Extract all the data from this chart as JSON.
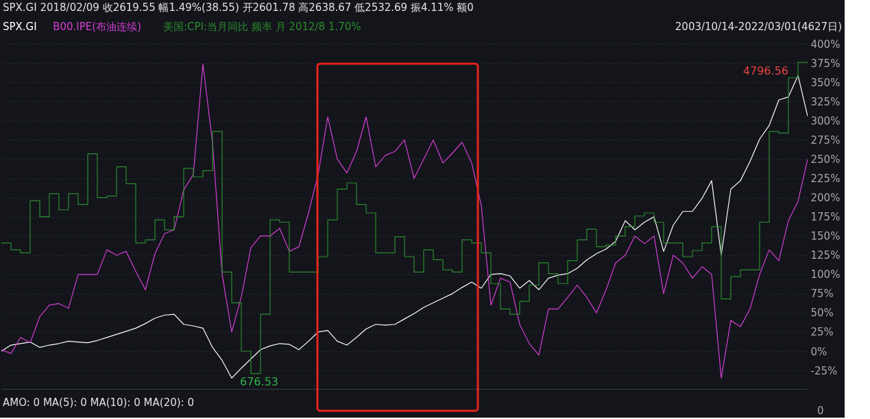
{
  "chart_data": {
    "type": "line",
    "title": "SPX.GI  2018/02/09  收2619.55  幅1.49%(38.55)  开2601.78  高2638.67  低2532.69  振4.11%  额0",
    "subtitle": "2003/10/14-2022/03/01(4627日)",
    "categories": [
      null,
      null,
      null,
      null,
      null,
      null,
      null,
      null,
      null,
      null,
      null,
      null,
      null,
      null,
      null,
      null,
      null,
      null,
      null,
      null,
      null,
      null,
      null,
      null,
      null,
      null,
      null,
      null,
      null,
      null,
      null,
      null,
      null,
      null,
      null,
      null,
      null,
      null,
      null,
      null,
      null,
      null,
      null,
      null,
      null,
      null,
      null,
      null,
      null,
      null,
      null,
      null,
      null,
      null,
      null,
      null,
      null,
      null,
      null,
      null,
      null,
      null,
      null,
      null,
      null,
      null,
      null,
      null,
      null,
      null,
      null,
      null,
      null,
      null,
      null,
      null,
      null,
      null,
      null,
      null,
      null,
      null,
      null,
      null,
      null
    ],
    "ylim": [
      -49,
      401
    ],
    "yticks": [
      {
        "value": -25,
        "label": "-25%"
      },
      {
        "value": 0,
        "label": "0%"
      },
      {
        "value": 25,
        "label": "25%"
      },
      {
        "value": 50,
        "label": "50%"
      },
      {
        "value": 75,
        "label": "75%"
      },
      {
        "value": 100,
        "label": "100%"
      },
      {
        "value": 125,
        "label": "125%"
      },
      {
        "value": 150,
        "label": "150%"
      },
      {
        "value": 175,
        "label": "175%"
      },
      {
        "value": 200,
        "label": "200%"
      },
      {
        "value": 225,
        "label": "225%"
      },
      {
        "value": 250,
        "label": "250%"
      },
      {
        "value": 275,
        "label": "275%"
      },
      {
        "value": 300,
        "label": "300%"
      },
      {
        "value": 325,
        "label": "325%"
      },
      {
        "value": 350,
        "label": "350%"
      },
      {
        "value": 375,
        "label": "375%"
      },
      {
        "value": 400,
        "label": "400%"
      }
    ],
    "tick_labels": "y",
    "grid": "y",
    "series": [
      {
        "name": "SPX.GI",
        "color": "#ffffff",
        "type": "line",
        "values": [
          0,
          8,
          10,
          12,
          5,
          8,
          10,
          13,
          12,
          11,
          14,
          18,
          22,
          26,
          30,
          36,
          43,
          47,
          48,
          35,
          33,
          30,
          5,
          -12,
          -35,
          -22,
          -10,
          2,
          7,
          10,
          9,
          2,
          13,
          25,
          27,
          13,
          8,
          18,
          29,
          35,
          34,
          35,
          42,
          49,
          57,
          63,
          69,
          75,
          83,
          90,
          82,
          100,
          101,
          98,
          82,
          92,
          80,
          95,
          99,
          101,
          108,
          119,
          127,
          133,
          143,
          170,
          158,
          168,
          175,
          130,
          164,
          182,
          182,
          199,
          222,
          125,
          211,
          222,
          247,
          276,
          294,
          327,
          331,
          359,
          306
        ]
      },
      {
        "name": "B00.IPE(布油连续)",
        "color": "#d63fd6",
        "type": "line",
        "values": [
          2,
          -3,
          18,
          11,
          45,
          60,
          62,
          56,
          100,
          100,
          100,
          132,
          125,
          130,
          104,
          80,
          127,
          153,
          158,
          210,
          230,
          374,
          271,
          100,
          25,
          71,
          135,
          150,
          150,
          160,
          130,
          136,
          180,
          230,
          305,
          250,
          232,
          260,
          305,
          240,
          255,
          260,
          275,
          225,
          250,
          275,
          245,
          258,
          272,
          245,
          190,
          60,
          95,
          90,
          35,
          10,
          -5,
          55,
          55,
          70,
          86,
          70,
          50,
          80,
          115,
          125,
          150,
          140,
          150,
          75,
          125,
          115,
          95,
          110,
          100,
          -35,
          40,
          32,
          55,
          100,
          132,
          118,
          170,
          195,
          250
        ]
      },
      {
        "name": "美国:CPI:当月同比 频率 月 2012/8 1.70%",
        "color": "#2e8b2e",
        "type": "step",
        "values": [
          141,
          132,
          128,
          196,
          175,
          205,
          184,
          205,
          191,
          257,
          200,
          202,
          240,
          218,
          141,
          145,
          171,
          158,
          175,
          238,
          227,
          235,
          286,
          103,
          63,
          0,
          -29,
          48,
          171,
          168,
          103,
          103,
          103,
          123,
          171,
          211,
          219,
          191,
          180,
          128,
          128,
          149,
          123,
          103,
          132,
          119,
          106,
          103,
          145,
          141,
          128,
          88,
          55,
          48,
          65,
          86,
          115,
          101,
          88,
          118,
          145,
          159,
          136,
          138,
          150,
          162,
          176,
          180,
          168,
          141,
          141,
          123,
          131,
          141,
          162,
          68,
          97,
          106,
          106,
          168,
          286,
          284,
          356,
          376,
          376
        ]
      }
    ],
    "annotations": [
      "676.53",
      "4796.56",
      "AMO: 0  MA(5): 0  MA(10): 0  MA(20): 0",
      "0"
    ]
  }
}
